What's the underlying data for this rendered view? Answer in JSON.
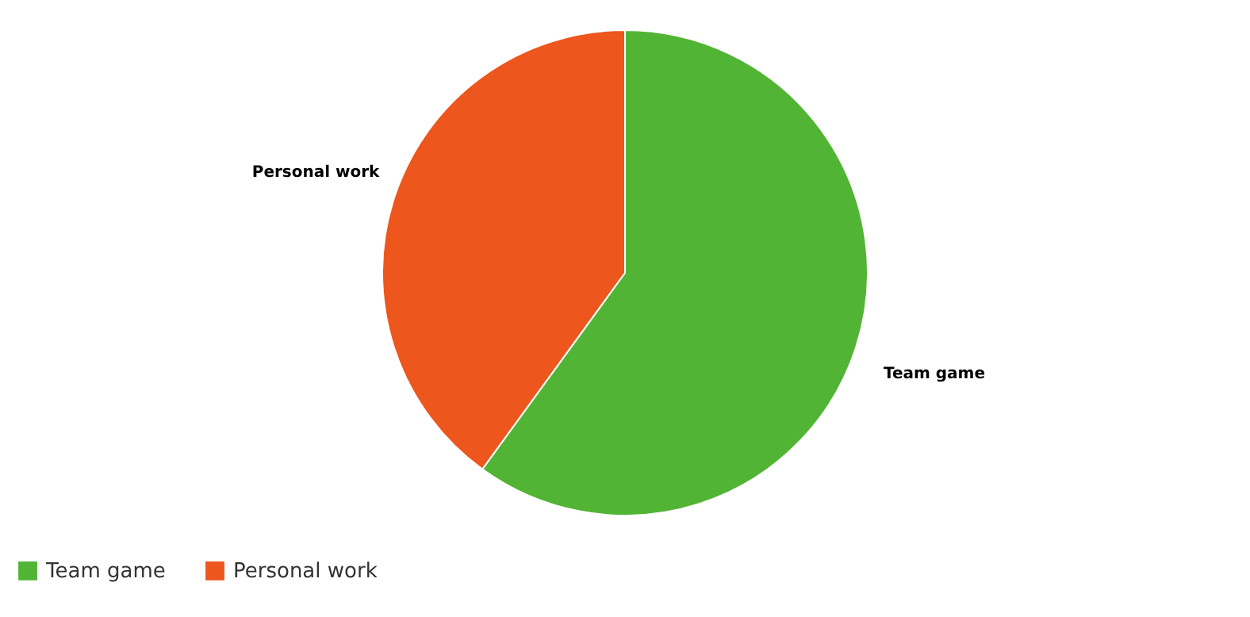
{
  "chart_data": {
    "type": "pie",
    "categories": [
      "Team game",
      "Personal work"
    ],
    "values": [
      60,
      40
    ],
    "colors": [
      "#52b435",
      "#ed561d"
    ],
    "legend": "bottom"
  }
}
